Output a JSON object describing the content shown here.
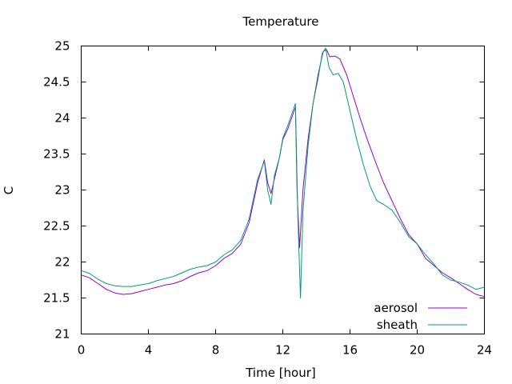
{
  "chart_data": {
    "type": "line",
    "title": "Temperature",
    "xlabel": "Time [hour]",
    "ylabel": "C",
    "xlim": [
      0,
      24
    ],
    "ylim": [
      21,
      25
    ],
    "xticks": [
      0,
      4,
      8,
      12,
      16,
      20,
      24
    ],
    "yticks": [
      21,
      21.5,
      22,
      22.5,
      23,
      23.5,
      24,
      24.5,
      25
    ],
    "grid": false,
    "legend_position": "bottom-right",
    "series": [
      {
        "name": "aerosol",
        "color": "#9400d3",
        "points": [
          [
            0,
            21.82
          ],
          [
            0.5,
            21.78
          ],
          [
            1,
            21.7
          ],
          [
            1.5,
            21.62
          ],
          [
            2,
            21.57
          ],
          [
            2.5,
            21.55
          ],
          [
            3,
            21.56
          ],
          [
            3.5,
            21.59
          ],
          [
            4,
            21.62
          ],
          [
            4.5,
            21.65
          ],
          [
            5,
            21.68
          ],
          [
            5.5,
            21.7
          ],
          [
            6,
            21.74
          ],
          [
            6.5,
            21.8
          ],
          [
            7,
            21.85
          ],
          [
            7.5,
            21.88
          ],
          [
            8,
            21.95
          ],
          [
            8.5,
            22.05
          ],
          [
            9,
            22.12
          ],
          [
            9.5,
            22.25
          ],
          [
            10,
            22.55
          ],
          [
            10.5,
            23.1
          ],
          [
            10.9,
            23.42
          ],
          [
            11.1,
            23.1
          ],
          [
            11.3,
            22.95
          ],
          [
            11.5,
            23.15
          ],
          [
            11.8,
            23.45
          ],
          [
            12,
            23.7
          ],
          [
            12.3,
            23.85
          ],
          [
            12.6,
            24.05
          ],
          [
            12.75,
            24.15
          ],
          [
            12.85,
            23.0
          ],
          [
            13.0,
            22.2
          ],
          [
            13.2,
            23.0
          ],
          [
            13.5,
            23.7
          ],
          [
            13.8,
            24.2
          ],
          [
            14.1,
            24.6
          ],
          [
            14.4,
            24.92
          ],
          [
            14.6,
            24.95
          ],
          [
            14.8,
            24.85
          ],
          [
            15.1,
            24.86
          ],
          [
            15.4,
            24.82
          ],
          [
            15.8,
            24.6
          ],
          [
            16.2,
            24.3
          ],
          [
            16.6,
            24.0
          ],
          [
            17,
            23.72
          ],
          [
            17.5,
            23.4
          ],
          [
            18,
            23.1
          ],
          [
            18.5,
            22.85
          ],
          [
            19,
            22.6
          ],
          [
            19.5,
            22.38
          ],
          [
            20,
            22.25
          ],
          [
            20.5,
            22.05
          ],
          [
            21,
            21.95
          ],
          [
            21.5,
            21.85
          ],
          [
            22,
            21.78
          ],
          [
            22.5,
            21.7
          ],
          [
            23,
            21.62
          ],
          [
            23.5,
            21.55
          ],
          [
            24,
            21.52
          ]
        ]
      },
      {
        "name": "sheath",
        "color": "#009e73",
        "points": [
          [
            0,
            21.88
          ],
          [
            0.5,
            21.84
          ],
          [
            1,
            21.76
          ],
          [
            1.5,
            21.7
          ],
          [
            2,
            21.67
          ],
          [
            2.5,
            21.66
          ],
          [
            3,
            21.66
          ],
          [
            3.5,
            21.68
          ],
          [
            4,
            21.7
          ],
          [
            4.5,
            21.74
          ],
          [
            5,
            21.77
          ],
          [
            5.5,
            21.8
          ],
          [
            6,
            21.85
          ],
          [
            6.5,
            21.9
          ],
          [
            7,
            21.93
          ],
          [
            7.5,
            21.95
          ],
          [
            8,
            22.0
          ],
          [
            8.5,
            22.1
          ],
          [
            9,
            22.17
          ],
          [
            9.5,
            22.3
          ],
          [
            10,
            22.6
          ],
          [
            10.5,
            23.15
          ],
          [
            10.9,
            23.4
          ],
          [
            11.1,
            23.0
          ],
          [
            11.3,
            22.8
          ],
          [
            11.5,
            23.2
          ],
          [
            11.8,
            23.45
          ],
          [
            12,
            23.72
          ],
          [
            12.3,
            23.9
          ],
          [
            12.6,
            24.1
          ],
          [
            12.75,
            24.2
          ],
          [
            12.9,
            22.6
          ],
          [
            13.05,
            21.5
          ],
          [
            13.2,
            22.7
          ],
          [
            13.5,
            23.6
          ],
          [
            13.8,
            24.2
          ],
          [
            14.1,
            24.55
          ],
          [
            14.35,
            24.9
          ],
          [
            14.55,
            24.97
          ],
          [
            14.75,
            24.7
          ],
          [
            15.0,
            24.6
          ],
          [
            15.3,
            24.62
          ],
          [
            15.6,
            24.5
          ],
          [
            16,
            24.1
          ],
          [
            16.4,
            23.7
          ],
          [
            16.8,
            23.35
          ],
          [
            17.2,
            23.05
          ],
          [
            17.6,
            22.85
          ],
          [
            18,
            22.8
          ],
          [
            18.5,
            22.72
          ],
          [
            19,
            22.55
          ],
          [
            19.5,
            22.35
          ],
          [
            20,
            22.25
          ],
          [
            20.5,
            22.1
          ],
          [
            21,
            21.97
          ],
          [
            21.5,
            21.82
          ],
          [
            22,
            21.75
          ],
          [
            22.5,
            21.72
          ],
          [
            23,
            21.68
          ],
          [
            23.5,
            21.62
          ],
          [
            24,
            21.65
          ]
        ]
      }
    ]
  }
}
